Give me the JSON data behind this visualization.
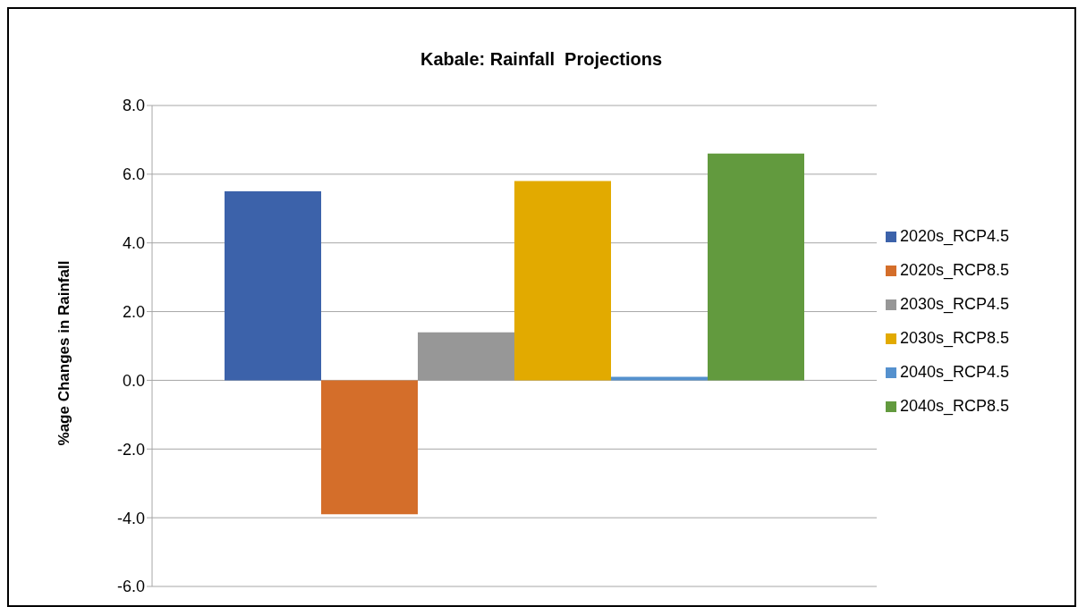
{
  "chart_data": {
    "type": "bar",
    "title": "Kabale: Rainfall  Projections",
    "ylabel": "%age Changes in Rainfall",
    "categories": [
      null
    ],
    "series": [
      {
        "name": "2020s_RCP4.5",
        "color": "#3c62aa",
        "values": [
          5.5
        ]
      },
      {
        "name": "2020s_RCP8.5",
        "color": "#d46e2a",
        "values": [
          -3.9
        ]
      },
      {
        "name": "2030s_RCP4.5",
        "color": "#979797",
        "values": [
          1.4
        ]
      },
      {
        "name": "2030s_RCP8.5",
        "color": "#e2aa00",
        "values": [
          5.8
        ]
      },
      {
        "name": "2040s_RCP4.5",
        "color": "#5591ce",
        "values": [
          0.1
        ]
      },
      {
        "name": "2040s_RCP8.5",
        "color": "#629a3e",
        "values": [
          6.6
        ]
      }
    ],
    "ylim": [
      -6,
      8
    ],
    "yticks": [
      {
        "value": -6,
        "label": "-6.0"
      },
      {
        "value": -4,
        "label": "-4.0"
      },
      {
        "value": -2,
        "label": "-2.0"
      },
      {
        "value": 0,
        "label": "0.0"
      },
      {
        "value": 2,
        "label": "2.0"
      },
      {
        "value": 4,
        "label": "4.0"
      },
      {
        "value": 6,
        "label": "6.0"
      },
      {
        "value": 8,
        "label": "8.0"
      }
    ],
    "grid": "y",
    "legend": "right"
  }
}
